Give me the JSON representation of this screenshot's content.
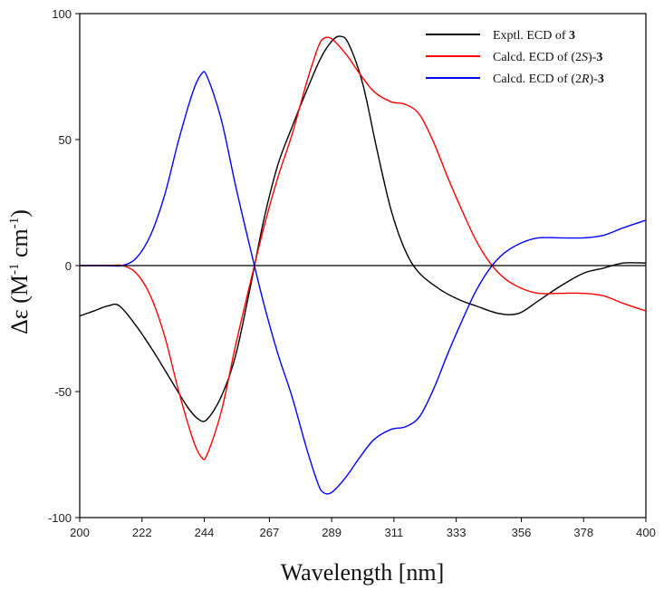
{
  "chart_data": {
    "type": "line",
    "title": "",
    "xlabel": "Wavelength [nm]",
    "ylabel_parts": {
      "prefix": "Δε (M",
      "sup1": "-1",
      "mid": " cm",
      "sup2": "-1",
      "suffix": ")"
    },
    "xlim": [
      200,
      400
    ],
    "ylim": [
      -100,
      100
    ],
    "x_ticks": [
      200,
      222,
      244,
      267,
      289,
      311,
      333,
      356,
      378,
      400
    ],
    "y_ticks": [
      100,
      50,
      0,
      -50,
      -100
    ],
    "grid": false,
    "legend_position": "top-right",
    "series": [
      {
        "name_parts": {
          "pre": "Exptl. ECD of ",
          "bold": "3"
        },
        "color": "#000000",
        "points": [
          [
            200,
            -20
          ],
          [
            205,
            -18
          ],
          [
            210,
            -16
          ],
          [
            214,
            -16
          ],
          [
            220,
            -24
          ],
          [
            226,
            -34
          ],
          [
            232,
            -45
          ],
          [
            238,
            -56
          ],
          [
            242,
            -61
          ],
          [
            245,
            -61
          ],
          [
            250,
            -52
          ],
          [
            255,
            -36
          ],
          [
            260,
            -10
          ],
          [
            265,
            18
          ],
          [
            270,
            40
          ],
          [
            275,
            55
          ],
          [
            280,
            69
          ],
          [
            285,
            82
          ],
          [
            289,
            89
          ],
          [
            292,
            91
          ],
          [
            295,
            88
          ],
          [
            300,
            72
          ],
          [
            305,
            46
          ],
          [
            310,
            22
          ],
          [
            315,
            6
          ],
          [
            320,
            -3
          ],
          [
            328,
            -10
          ],
          [
            335,
            -14
          ],
          [
            340,
            -16
          ],
          [
            348,
            -19
          ],
          [
            355,
            -19
          ],
          [
            362,
            -14
          ],
          [
            370,
            -8
          ],
          [
            378,
            -3
          ],
          [
            385,
            -1
          ],
          [
            392,
            1
          ],
          [
            400,
            1
          ]
        ]
      },
      {
        "name_parts": {
          "pre": "Calcd. ECD of (2",
          "ital": "S",
          "post": ")-",
          "bold": "3"
        },
        "color": "#ff0000",
        "points": [
          [
            200,
            0
          ],
          [
            210,
            0
          ],
          [
            215,
            0
          ],
          [
            220,
            -3
          ],
          [
            225,
            -12
          ],
          [
            230,
            -28
          ],
          [
            235,
            -50
          ],
          [
            240,
            -69
          ],
          [
            243,
            -76
          ],
          [
            245,
            -75
          ],
          [
            250,
            -58
          ],
          [
            255,
            -32
          ],
          [
            260,
            -8
          ],
          [
            265,
            15
          ],
          [
            270,
            35
          ],
          [
            275,
            52
          ],
          [
            280,
            72
          ],
          [
            284,
            86
          ],
          [
            286,
            90
          ],
          [
            289,
            90
          ],
          [
            294,
            84
          ],
          [
            299,
            76
          ],
          [
            304,
            69
          ],
          [
            310,
            65
          ],
          [
            315,
            64
          ],
          [
            320,
            60
          ],
          [
            325,
            49
          ],
          [
            330,
            35
          ],
          [
            335,
            22
          ],
          [
            340,
            10
          ],
          [
            345,
            1
          ],
          [
            350,
            -5
          ],
          [
            356,
            -9
          ],
          [
            362,
            -11
          ],
          [
            370,
            -11
          ],
          [
            378,
            -11
          ],
          [
            385,
            -12
          ],
          [
            392,
            -15
          ],
          [
            400,
            -18
          ]
        ]
      },
      {
        "name_parts": {
          "pre": "Calcd. ECD of (2",
          "ital": "R",
          "post": ")-",
          "bold": "3"
        },
        "color": "#0000ff",
        "points": [
          [
            200,
            0
          ],
          [
            210,
            0
          ],
          [
            215,
            0
          ],
          [
            220,
            3
          ],
          [
            225,
            12
          ],
          [
            230,
            28
          ],
          [
            235,
            50
          ],
          [
            240,
            69
          ],
          [
            243,
            76
          ],
          [
            245,
            75
          ],
          [
            250,
            58
          ],
          [
            255,
            32
          ],
          [
            260,
            8
          ],
          [
            265,
            -15
          ],
          [
            270,
            -35
          ],
          [
            275,
            -52
          ],
          [
            280,
            -72
          ],
          [
            284,
            -86
          ],
          [
            286,
            -90
          ],
          [
            289,
            -90
          ],
          [
            294,
            -84
          ],
          [
            299,
            -76
          ],
          [
            304,
            -69
          ],
          [
            310,
            -65
          ],
          [
            315,
            -64
          ],
          [
            320,
            -60
          ],
          [
            325,
            -49
          ],
          [
            330,
            -35
          ],
          [
            335,
            -22
          ],
          [
            340,
            -10
          ],
          [
            345,
            -1
          ],
          [
            350,
            5
          ],
          [
            356,
            9
          ],
          [
            362,
            11
          ],
          [
            370,
            11
          ],
          [
            378,
            11
          ],
          [
            385,
            12
          ],
          [
            392,
            15
          ],
          [
            400,
            18
          ]
        ]
      }
    ]
  }
}
